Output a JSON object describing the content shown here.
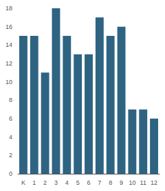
{
  "chart_data": {
    "type": "bar",
    "categories": [
      "K",
      "1",
      "2",
      "3",
      "4",
      "5",
      "6",
      "7",
      "8",
      "9",
      "10",
      "11",
      "12"
    ],
    "values": [
      15,
      15,
      11,
      18,
      15,
      13,
      13,
      17,
      15,
      16,
      7,
      7,
      6
    ],
    "color": "#2e6482",
    "ylim": [
      0,
      18
    ],
    "yticks": [
      0,
      2,
      4,
      6,
      8,
      10,
      12,
      14,
      16,
      18
    ],
    "grid": false
  }
}
